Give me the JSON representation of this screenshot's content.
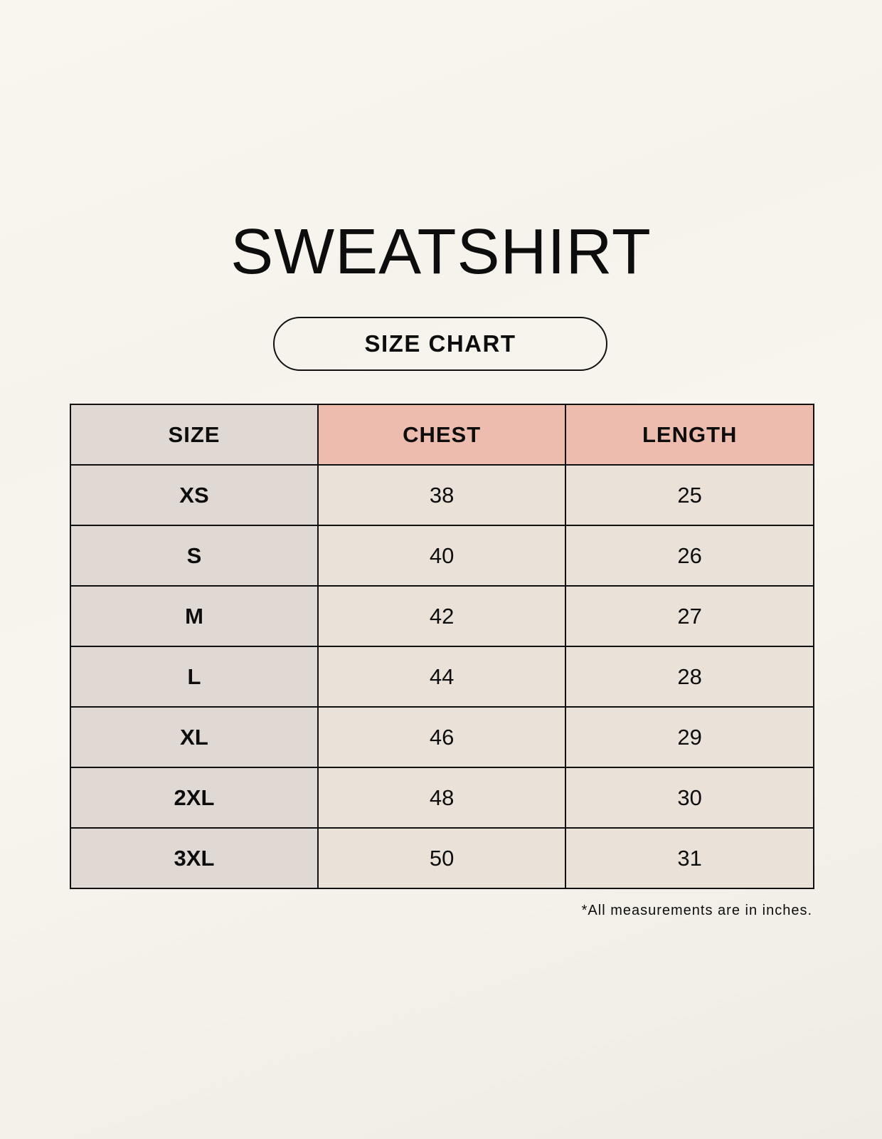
{
  "title": "SWEATSHIRT",
  "subtitle": "SIZE CHART",
  "table": {
    "headers": [
      "SIZE",
      "CHEST",
      "LENGTH"
    ],
    "rows": [
      [
        "XS",
        "38",
        "25"
      ],
      [
        "S",
        "40",
        "26"
      ],
      [
        "M",
        "42",
        "27"
      ],
      [
        "L",
        "44",
        "28"
      ],
      [
        "XL",
        "46",
        "29"
      ],
      [
        "2XL",
        "48",
        "30"
      ],
      [
        "3XL",
        "50",
        "31"
      ]
    ]
  },
  "footnote": "*All measurements are in inches.",
  "colors": {
    "size_column": "#e0d8d2",
    "header_accent": "#edbcae",
    "cell": "#eae2d8"
  }
}
